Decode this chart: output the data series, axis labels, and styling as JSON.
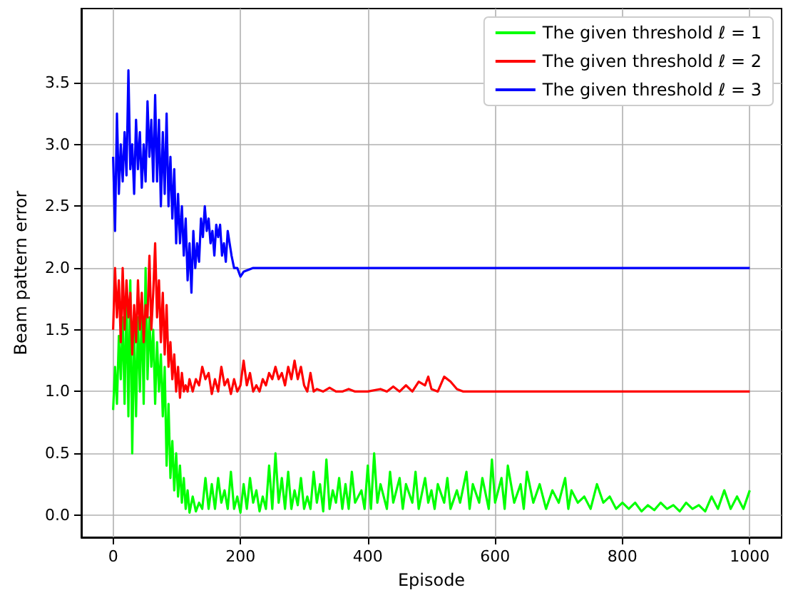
{
  "chart_data": {
    "type": "line",
    "xlabel": "Episode",
    "ylabel": "Beam pattern error",
    "xlim": [
      -50,
      1050
    ],
    "xticks": [
      0,
      200,
      400,
      600,
      800,
      1000
    ],
    "ylim": [
      -0.18,
      4.1
    ],
    "yticks": [
      {
        "value": 0,
        "label": "0.0"
      },
      {
        "value": 0.5,
        "label": "0.5"
      },
      {
        "value": 1,
        "label": "1.0"
      },
      {
        "value": 1.5,
        "label": "1.5"
      },
      {
        "value": 2,
        "label": "2.0"
      },
      {
        "value": 2.5,
        "label": "2.5"
      },
      {
        "value": 3,
        "label": "3.0"
      },
      {
        "value": 3.5,
        "label": "3.5"
      }
    ],
    "grid": true,
    "legend": "top right",
    "marker": "none",
    "line_style": "solid",
    "series": [
      {
        "name": "The given threshold ℓ = 1",
        "color": "#00ff00",
        "x": [
          0,
          3,
          6,
          9,
          12,
          15,
          18,
          21,
          24,
          27,
          30,
          33,
          36,
          39,
          42,
          45,
          48,
          51,
          54,
          57,
          60,
          63,
          66,
          69,
          72,
          75,
          78,
          81,
          84,
          87,
          90,
          93,
          96,
          99,
          102,
          105,
          108,
          111,
          114,
          117,
          120,
          125,
          130,
          135,
          140,
          145,
          150,
          155,
          160,
          165,
          170,
          175,
          180,
          185,
          190,
          195,
          200,
          205,
          210,
          215,
          220,
          225,
          230,
          235,
          240,
          245,
          250,
          255,
          260,
          265,
          270,
          275,
          280,
          285,
          290,
          295,
          300,
          305,
          310,
          315,
          320,
          325,
          330,
          335,
          340,
          345,
          350,
          355,
          360,
          365,
          370,
          375,
          380,
          390,
          395,
          400,
          405,
          410,
          415,
          420,
          430,
          435,
          440,
          450,
          455,
          460,
          470,
          475,
          480,
          490,
          495,
          500,
          505,
          510,
          520,
          525,
          530,
          540,
          545,
          555,
          560,
          565,
          575,
          580,
          590,
          595,
          600,
          610,
          615,
          620,
          630,
          640,
          645,
          650,
          660,
          670,
          680,
          690,
          700,
          710,
          715,
          720,
          730,
          740,
          750,
          760,
          770,
          780,
          790,
          800,
          810,
          820,
          830,
          840,
          850,
          860,
          870,
          880,
          890,
          900,
          910,
          920,
          930,
          940,
          950,
          960,
          970,
          980,
          990,
          1000
        ],
        "values": [
          0.85,
          1.2,
          0.9,
          1.45,
          1.1,
          1.6,
          0.9,
          1.8,
          0.8,
          1.9,
          0.5,
          1.5,
          0.8,
          1.6,
          1.0,
          1.7,
          0.9,
          2.0,
          1.1,
          1.6,
          1.2,
          1.5,
          0.9,
          1.4,
          1.0,
          1.3,
          0.8,
          1.2,
          0.4,
          0.9,
          0.3,
          0.6,
          0.2,
          0.5,
          0.15,
          0.4,
          0.1,
          0.3,
          0.05,
          0.2,
          0.02,
          0.15,
          0.03,
          0.1,
          0.05,
          0.3,
          0.05,
          0.25,
          0.05,
          0.3,
          0.1,
          0.2,
          0.05,
          0.35,
          0.05,
          0.15,
          0.02,
          0.25,
          0.05,
          0.3,
          0.1,
          0.2,
          0.03,
          0.15,
          0.05,
          0.4,
          0.05,
          0.5,
          0.1,
          0.3,
          0.05,
          0.35,
          0.05,
          0.2,
          0.08,
          0.3,
          0.05,
          0.15,
          0.05,
          0.35,
          0.1,
          0.25,
          0.03,
          0.45,
          0.05,
          0.2,
          0.1,
          0.3,
          0.05,
          0.25,
          0.05,
          0.35,
          0.1,
          0.2,
          0.05,
          0.4,
          0.05,
          0.5,
          0.1,
          0.25,
          0.05,
          0.35,
          0.1,
          0.3,
          0.05,
          0.25,
          0.1,
          0.35,
          0.05,
          0.3,
          0.1,
          0.2,
          0.05,
          0.25,
          0.1,
          0.3,
          0.05,
          0.2,
          0.1,
          0.35,
          0.05,
          0.25,
          0.1,
          0.3,
          0.05,
          0.45,
          0.1,
          0.3,
          0.05,
          0.4,
          0.1,
          0.25,
          0.05,
          0.35,
          0.1,
          0.25,
          0.05,
          0.2,
          0.1,
          0.3,
          0.05,
          0.2,
          0.1,
          0.15,
          0.05,
          0.25,
          0.1,
          0.15,
          0.05,
          0.1,
          0.05,
          0.1,
          0.03,
          0.08,
          0.04,
          0.1,
          0.05,
          0.08,
          0.03,
          0.1,
          0.05,
          0.08,
          0.03,
          0.15,
          0.05,
          0.2,
          0.05,
          0.15,
          0.05,
          0.2
        ]
      },
      {
        "name": "The given threshold ℓ = 2",
        "color": "#ff0000",
        "x": [
          0,
          3,
          6,
          9,
          12,
          15,
          18,
          21,
          24,
          27,
          30,
          33,
          36,
          39,
          42,
          45,
          48,
          51,
          54,
          57,
          60,
          63,
          66,
          69,
          72,
          75,
          78,
          81,
          84,
          87,
          90,
          93,
          96,
          99,
          102,
          105,
          108,
          111,
          114,
          117,
          120,
          125,
          130,
          135,
          140,
          145,
          150,
          155,
          160,
          165,
          170,
          175,
          180,
          185,
          190,
          195,
          200,
          205,
          210,
          215,
          220,
          225,
          230,
          235,
          240,
          245,
          250,
          255,
          260,
          265,
          270,
          275,
          280,
          285,
          290,
          295,
          300,
          305,
          310,
          315,
          320,
          330,
          340,
          350,
          360,
          370,
          380,
          400,
          420,
          430,
          440,
          450,
          460,
          470,
          480,
          490,
          495,
          500,
          510,
          520,
          530,
          540,
          550,
          1000
        ],
        "values": [
          1.5,
          2.0,
          1.6,
          1.9,
          1.4,
          2.0,
          1.5,
          1.9,
          1.6,
          1.8,
          1.3,
          1.7,
          1.4,
          1.9,
          1.5,
          1.8,
          1.4,
          1.7,
          1.6,
          2.1,
          1.5,
          1.8,
          2.2,
          1.6,
          1.9,
          1.4,
          1.8,
          1.3,
          1.7,
          1.2,
          1.4,
          1.1,
          1.3,
          1.0,
          1.2,
          0.95,
          1.15,
          1.0,
          1.05,
          1.0,
          1.1,
          1.0,
          1.1,
          1.05,
          1.2,
          1.1,
          1.15,
          0.98,
          1.1,
          1.0,
          1.2,
          1.05,
          1.1,
          0.98,
          1.1,
          1.0,
          1.05,
          1.25,
          1.05,
          1.15,
          1.0,
          1.05,
          1.0,
          1.1,
          1.05,
          1.15,
          1.1,
          1.2,
          1.1,
          1.15,
          1.05,
          1.2,
          1.1,
          1.25,
          1.1,
          1.2,
          1.05,
          1.0,
          1.15,
          1.0,
          1.02,
          1.0,
          1.03,
          1.0,
          1.0,
          1.02,
          1.0,
          1.0,
          1.02,
          1.0,
          1.04,
          1.0,
          1.05,
          1.0,
          1.08,
          1.05,
          1.12,
          1.02,
          1.0,
          1.12,
          1.08,
          1.02,
          1.0,
          1.0
        ]
      },
      {
        "name": "The given threshold ℓ = 3",
        "color": "#0000ff",
        "x": [
          0,
          3,
          6,
          9,
          12,
          15,
          18,
          21,
          24,
          27,
          30,
          33,
          36,
          39,
          42,
          45,
          48,
          51,
          54,
          57,
          60,
          63,
          66,
          69,
          72,
          75,
          78,
          81,
          84,
          87,
          90,
          93,
          96,
          99,
          102,
          105,
          108,
          111,
          114,
          117,
          120,
          123,
          126,
          129,
          132,
          135,
          138,
          141,
          144,
          147,
          150,
          153,
          156,
          159,
          162,
          165,
          168,
          171,
          174,
          177,
          180,
          183,
          186,
          190,
          195,
          200,
          205,
          210,
          220,
          1000
        ],
        "values": [
          2.9,
          2.3,
          3.25,
          2.6,
          3.0,
          2.7,
          3.1,
          2.75,
          3.6,
          2.8,
          3.0,
          2.6,
          3.2,
          2.8,
          3.1,
          2.65,
          3.0,
          2.7,
          3.35,
          2.9,
          3.2,
          2.7,
          3.4,
          2.7,
          3.2,
          2.5,
          3.1,
          2.6,
          3.25,
          2.5,
          2.9,
          2.4,
          2.8,
          2.2,
          2.6,
          2.2,
          2.5,
          2.1,
          2.4,
          1.9,
          2.2,
          1.8,
          2.3,
          2.0,
          2.2,
          2.05,
          2.4,
          2.25,
          2.5,
          2.3,
          2.4,
          2.2,
          2.3,
          2.1,
          2.35,
          2.25,
          2.35,
          2.1,
          2.2,
          2.05,
          2.3,
          2.2,
          2.1,
          2.0,
          2.0,
          1.93,
          1.97,
          1.98,
          2.0,
          2.0
        ]
      }
    ]
  }
}
